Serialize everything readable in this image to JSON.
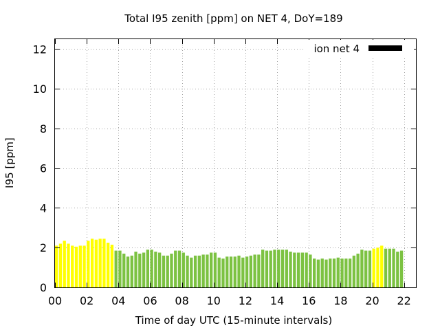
{
  "chart_data": {
    "type": "bar",
    "title": "Total I95 zenith [ppm] on NET 4, DoY=189",
    "xlabel": "Time of day UTC (15-minute intervals)",
    "ylabel": "I95 [ppm]",
    "ylim": [
      0,
      12.5
    ],
    "xlim": [
      0,
      22.75
    ],
    "yticks": [
      0,
      2,
      4,
      6,
      8,
      10,
      12
    ],
    "xticks": [
      0,
      2,
      4,
      6,
      8,
      10,
      12,
      14,
      16,
      18,
      20,
      22
    ],
    "xtick_labels": [
      "00",
      "02",
      "04",
      "06",
      "08",
      "10",
      "12",
      "14",
      "16",
      "18",
      "20",
      "22"
    ],
    "grid": true,
    "legend": {
      "label": "ion net 4",
      "placement": "top-right",
      "color": "#000000"
    },
    "colors": {
      "green": "#7cc242",
      "yellow": "#ffff00"
    },
    "interval_hours": 0.25,
    "series": [
      {
        "name": "ion net 4",
        "values": [
          2.1,
          2.2,
          2.35,
          2.2,
          2.1,
          2.05,
          2.1,
          2.1,
          2.35,
          2.45,
          2.4,
          2.45,
          2.45,
          2.25,
          2.15,
          1.85,
          1.85,
          1.7,
          1.55,
          1.6,
          1.8,
          1.7,
          1.75,
          1.9,
          1.9,
          1.8,
          1.75,
          1.6,
          1.6,
          1.7,
          1.85,
          1.85,
          1.75,
          1.6,
          1.5,
          1.6,
          1.6,
          1.65,
          1.65,
          1.75,
          1.75,
          1.5,
          1.45,
          1.55,
          1.55,
          1.55,
          1.6,
          1.5,
          1.55,
          1.6,
          1.65,
          1.65,
          1.9,
          1.85,
          1.85,
          1.9,
          1.9,
          1.9,
          1.9,
          1.8,
          1.75,
          1.75,
          1.75,
          1.75,
          1.65,
          1.45,
          1.4,
          1.45,
          1.4,
          1.45,
          1.45,
          1.5,
          1.45,
          1.45,
          1.45,
          1.6,
          1.7,
          1.9,
          1.85,
          1.85,
          1.95,
          2.0,
          2.1,
          1.95,
          1.95,
          1.95,
          1.8,
          1.85
        ],
        "colors": [
          "yellow",
          "yellow",
          "yellow",
          "yellow",
          "yellow",
          "yellow",
          "yellow",
          "yellow",
          "yellow",
          "yellow",
          "yellow",
          "yellow",
          "yellow",
          "yellow",
          "yellow",
          "green",
          "green",
          "green",
          "green",
          "green",
          "green",
          "green",
          "green",
          "green",
          "green",
          "green",
          "green",
          "green",
          "green",
          "green",
          "green",
          "green",
          "green",
          "green",
          "green",
          "green",
          "green",
          "green",
          "green",
          "green",
          "green",
          "green",
          "green",
          "green",
          "green",
          "green",
          "green",
          "green",
          "green",
          "green",
          "green",
          "green",
          "green",
          "green",
          "green",
          "green",
          "green",
          "green",
          "green",
          "green",
          "green",
          "green",
          "green",
          "green",
          "green",
          "green",
          "green",
          "green",
          "green",
          "green",
          "green",
          "green",
          "green",
          "green",
          "green",
          "green",
          "green",
          "green",
          "green",
          "green",
          "yellow",
          "yellow",
          "yellow",
          "green",
          "green",
          "green",
          "green",
          "green"
        ]
      }
    ]
  }
}
